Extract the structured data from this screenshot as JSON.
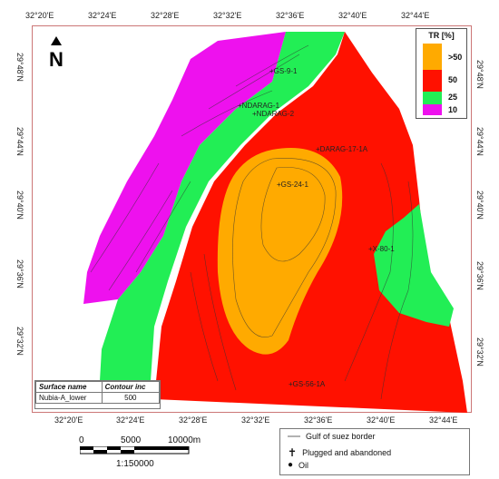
{
  "map": {
    "longitude_labels": [
      "32°20'E",
      "32°24'E",
      "32°28'E",
      "32°32'E",
      "32°36'E",
      "32°40'E",
      "32°44'E"
    ],
    "latitude_labels": [
      "29°48'N",
      "29°44'N",
      "29°40'N",
      "29°36'N",
      "29°32'N"
    ],
    "wells": [
      "GS-9-1",
      "NDARAG-1",
      "NDARAG-2",
      "DARAG-17-1A",
      "GS-24-1",
      "X-80-1",
      "GS-56-1A"
    ],
    "north_arrow": "N"
  },
  "legend": {
    "title": "TR [%]",
    "classes": [
      {
        "label": ">50",
        "color": "#FFAA00"
      },
      {
        "label": "50",
        "color": "#FF1100"
      },
      {
        "label": "25",
        "color": "#22EE55"
      },
      {
        "label": "10",
        "color": "#EE11EE"
      }
    ]
  },
  "surface_info": {
    "name_header": "Surface name",
    "contour_header": "Contour inc",
    "name_value": "Nubia-A_lower",
    "contour_value": "500"
  },
  "scale_bar": {
    "labels": [
      "0",
      "5000",
      "10000m"
    ],
    "ratio": "1:150000"
  },
  "map_key": {
    "items": [
      "Gulf of suez border",
      "Plugged and abandoned",
      "Oil"
    ]
  }
}
